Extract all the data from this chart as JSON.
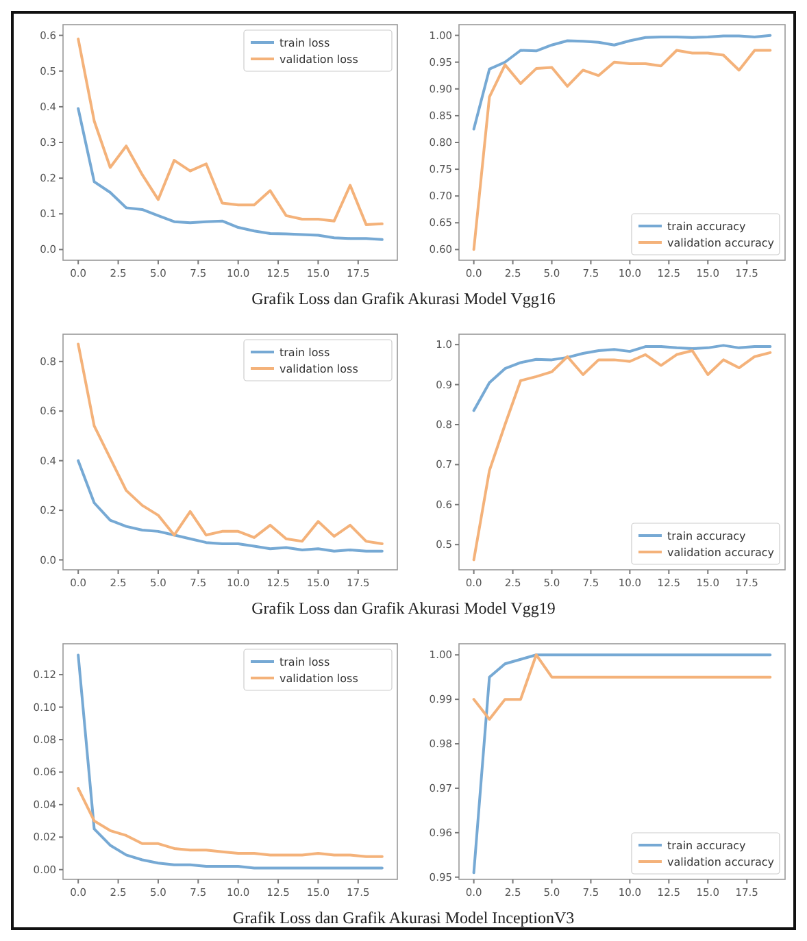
{
  "chart_data": [
    {
      "type": "line",
      "x": [
        0,
        1,
        2,
        3,
        4,
        5,
        6,
        7,
        8,
        9,
        10,
        11,
        12,
        13,
        14,
        15,
        16,
        17,
        18,
        19
      ],
      "xlim": [
        -0.95,
        19.95
      ],
      "xticks": [
        {
          "value": 0,
          "label": "0.0"
        },
        {
          "value": 2.5,
          "label": "2.5"
        },
        {
          "value": 5,
          "label": "5.0"
        },
        {
          "value": 7.5,
          "label": "7.5"
        },
        {
          "value": 10,
          "label": "10.0"
        },
        {
          "value": 12.5,
          "label": "12.5"
        },
        {
          "value": 15,
          "label": "15.0"
        },
        {
          "value": 17.5,
          "label": "17.5"
        }
      ],
      "ylim": [
        -0.03,
        0.63
      ],
      "yticks": [
        {
          "value": 0,
          "label": "0.0"
        },
        0.1,
        0.2,
        0.3,
        0.4,
        0.5,
        0.6
      ],
      "legend": "top right",
      "annotations": [
        "Grafik Loss dan Grafik Akurasi Model Vgg16"
      ],
      "series": [
        {
          "name": "train loss",
          "color": "#76a9d4",
          "values": [
            0.395,
            0.19,
            0.16,
            0.117,
            0.112,
            0.095,
            0.078,
            0.075,
            0.078,
            0.08,
            0.062,
            0.052,
            0.045,
            0.044,
            0.042,
            0.04,
            0.033,
            0.031,
            0.031,
            0.028
          ]
        },
        {
          "name": "validation loss",
          "color": "#f4b27a",
          "values": [
            0.59,
            0.36,
            0.23,
            0.29,
            0.21,
            0.14,
            0.25,
            0.22,
            0.24,
            0.13,
            0.125,
            0.125,
            0.165,
            0.095,
            0.085,
            0.085,
            0.08,
            0.18,
            0.07,
            0.072
          ]
        }
      ]
    },
    {
      "type": "line",
      "x": [
        0,
        1,
        2,
        3,
        4,
        5,
        6,
        7,
        8,
        9,
        10,
        11,
        12,
        13,
        14,
        15,
        16,
        17,
        18,
        19
      ],
      "xlim": [
        -0.95,
        19.95
      ],
      "xticks": [
        {
          "value": 0,
          "label": "0.0"
        },
        {
          "value": 2.5,
          "label": "2.5"
        },
        {
          "value": 5,
          "label": "5.0"
        },
        {
          "value": 7.5,
          "label": "7.5"
        },
        {
          "value": 10,
          "label": "10.0"
        },
        {
          "value": 12.5,
          "label": "12.5"
        },
        {
          "value": 15,
          "label": "15.0"
        },
        {
          "value": 17.5,
          "label": "17.5"
        }
      ],
      "ylim": [
        0.58,
        1.02
      ],
      "yticks": [
        {
          "value": 0.6,
          "label": "0.60"
        },
        0.65,
        {
          "value": 0.7,
          "label": "0.70"
        },
        0.75,
        {
          "value": 0.8,
          "label": "0.80"
        },
        0.85,
        {
          "value": 0.9,
          "label": "0.90"
        },
        0.95,
        {
          "value": 1,
          "label": "1.00"
        }
      ],
      "legend": "bottom right",
      "series": [
        {
          "name": "train accuracy",
          "color": "#76a9d4",
          "values": [
            0.825,
            0.937,
            0.95,
            0.972,
            0.971,
            0.982,
            0.99,
            0.989,
            0.987,
            0.982,
            0.99,
            0.996,
            0.997,
            0.997,
            0.996,
            0.997,
            0.999,
            0.999,
            0.997,
            1.0
          ]
        },
        {
          "name": "validation accuracy",
          "color": "#f4b27a",
          "values": [
            0.6,
            0.885,
            0.945,
            0.91,
            0.938,
            0.94,
            0.905,
            0.935,
            0.925,
            0.95,
            0.947,
            0.947,
            0.943,
            0.972,
            0.967,
            0.967,
            0.963,
            0.935,
            0.972,
            0.972
          ]
        }
      ]
    },
    {
      "type": "line",
      "x": [
        0,
        1,
        2,
        3,
        4,
        5,
        6,
        7,
        8,
        9,
        10,
        11,
        12,
        13,
        14,
        15,
        16,
        17,
        18,
        19
      ],
      "xlim": [
        -0.95,
        19.95
      ],
      "xticks": [
        {
          "value": 0,
          "label": "0.0"
        },
        {
          "value": 2.5,
          "label": "2.5"
        },
        {
          "value": 5,
          "label": "5.0"
        },
        {
          "value": 7.5,
          "label": "7.5"
        },
        {
          "value": 10,
          "label": "10.0"
        },
        {
          "value": 12.5,
          "label": "12.5"
        },
        {
          "value": 15,
          "label": "15.0"
        },
        {
          "value": 17.5,
          "label": "17.5"
        }
      ],
      "ylim": [
        -0.04,
        0.91
      ],
      "yticks": [
        {
          "value": 0,
          "label": "0.0"
        },
        0.2,
        0.4,
        0.6,
        0.8
      ],
      "legend": "top right",
      "annotations": [
        "Grafik Loss dan Grafik Akurasi Model Vgg19"
      ],
      "series": [
        {
          "name": "train loss",
          "color": "#76a9d4",
          "values": [
            0.4,
            0.23,
            0.16,
            0.135,
            0.12,
            0.115,
            0.1,
            0.085,
            0.07,
            0.065,
            0.065,
            0.055,
            0.045,
            0.05,
            0.04,
            0.045,
            0.035,
            0.04,
            0.035,
            0.035
          ]
        },
        {
          "name": "validation loss",
          "color": "#f4b27a",
          "values": [
            0.87,
            0.54,
            0.41,
            0.28,
            0.22,
            0.18,
            0.1,
            0.195,
            0.1,
            0.115,
            0.115,
            0.09,
            0.14,
            0.085,
            0.075,
            0.155,
            0.095,
            0.14,
            0.075,
            0.065
          ]
        }
      ]
    },
    {
      "type": "line",
      "x": [
        0,
        1,
        2,
        3,
        4,
        5,
        6,
        7,
        8,
        9,
        10,
        11,
        12,
        13,
        14,
        15,
        16,
        17,
        18,
        19
      ],
      "xlim": [
        -0.95,
        19.95
      ],
      "xticks": [
        {
          "value": 0,
          "label": "0.0"
        },
        {
          "value": 2.5,
          "label": "2.5"
        },
        {
          "value": 5,
          "label": "5.0"
        },
        {
          "value": 7.5,
          "label": "7.5"
        },
        {
          "value": 10,
          "label": "10.0"
        },
        {
          "value": 12.5,
          "label": "12.5"
        },
        {
          "value": 15,
          "label": "15.0"
        },
        {
          "value": 17.5,
          "label": "17.5"
        }
      ],
      "ylim": [
        0.437,
        1.026
      ],
      "yticks": [
        0.5,
        0.6,
        0.7,
        0.8,
        0.9,
        {
          "value": 1,
          "label": "1.0"
        }
      ],
      "legend": "bottom right",
      "series": [
        {
          "name": "train accuracy",
          "color": "#76a9d4",
          "values": [
            0.835,
            0.905,
            0.94,
            0.955,
            0.963,
            0.962,
            0.968,
            0.978,
            0.985,
            0.988,
            0.983,
            0.995,
            0.995,
            0.992,
            0.99,
            0.992,
            0.998,
            0.992,
            0.995,
            0.995
          ]
        },
        {
          "name": "validation accuracy",
          "color": "#f4b27a",
          "values": [
            0.462,
            0.685,
            0.8,
            0.91,
            0.92,
            0.932,
            0.97,
            0.925,
            0.962,
            0.962,
            0.958,
            0.975,
            0.948,
            0.975,
            0.985,
            0.925,
            0.962,
            0.942,
            0.97,
            0.98
          ]
        }
      ]
    },
    {
      "type": "line",
      "x": [
        0,
        1,
        2,
        3,
        4,
        5,
        6,
        7,
        8,
        9,
        10,
        11,
        12,
        13,
        14,
        15,
        16,
        17,
        18,
        19
      ],
      "xlim": [
        -0.95,
        19.95
      ],
      "xticks": [
        {
          "value": 0,
          "label": "0.0"
        },
        {
          "value": 2.5,
          "label": "2.5"
        },
        {
          "value": 5,
          "label": "5.0"
        },
        {
          "value": 7.5,
          "label": "7.5"
        },
        {
          "value": 10,
          "label": "10.0"
        },
        {
          "value": 12.5,
          "label": "12.5"
        },
        {
          "value": 15,
          "label": "15.0"
        },
        {
          "value": 17.5,
          "label": "17.5"
        }
      ],
      "ylim": [
        -0.006,
        0.139
      ],
      "yticks": [
        {
          "value": 0,
          "label": "0.00"
        },
        0.02,
        0.04,
        0.06,
        0.08,
        {
          "value": 0.1,
          "label": "0.10"
        },
        0.12
      ],
      "legend": "top right",
      "annotations": [
        "Grafik Loss dan Grafik Akurasi Model InceptionV3"
      ],
      "series": [
        {
          "name": "train loss",
          "color": "#76a9d4",
          "values": [
            0.132,
            0.025,
            0.015,
            0.009,
            0.006,
            0.004,
            0.003,
            0.003,
            0.002,
            0.002,
            0.002,
            0.001,
            0.001,
            0.001,
            0.001,
            0.001,
            0.001,
            0.001,
            0.001,
            0.001
          ]
        },
        {
          "name": "validation loss",
          "color": "#f4b27a",
          "values": [
            0.05,
            0.03,
            0.024,
            0.021,
            0.016,
            0.016,
            0.013,
            0.012,
            0.012,
            0.011,
            0.01,
            0.01,
            0.009,
            0.009,
            0.009,
            0.01,
            0.009,
            0.009,
            0.008,
            0.008
          ]
        }
      ]
    },
    {
      "type": "line",
      "x": [
        0,
        1,
        2,
        3,
        4,
        5,
        6,
        7,
        8,
        9,
        10,
        11,
        12,
        13,
        14,
        15,
        16,
        17,
        18,
        19
      ],
      "xlim": [
        -0.95,
        19.95
      ],
      "xticks": [
        {
          "value": 0,
          "label": "0.0"
        },
        {
          "value": 2.5,
          "label": "2.5"
        },
        {
          "value": 5,
          "label": "5.0"
        },
        {
          "value": 7.5,
          "label": "7.5"
        },
        {
          "value": 10,
          "label": "10.0"
        },
        {
          "value": 12.5,
          "label": "12.5"
        },
        {
          "value": 15,
          "label": "15.0"
        },
        {
          "value": 17.5,
          "label": "17.5"
        }
      ],
      "ylim": [
        0.9495,
        1.0025
      ],
      "yticks": [
        0.95,
        0.96,
        0.97,
        0.98,
        0.99,
        {
          "value": 1,
          "label": "1.00"
        }
      ],
      "legend": "bottom right",
      "series": [
        {
          "name": "train accuracy",
          "color": "#76a9d4",
          "values": [
            0.951,
            0.995,
            0.998,
            0.999,
            1.0,
            1.0,
            1.0,
            1.0,
            1.0,
            1.0,
            1.0,
            1.0,
            1.0,
            1.0,
            1.0,
            1.0,
            1.0,
            1.0,
            1.0,
            1.0
          ]
        },
        {
          "name": "validation accuracy",
          "color": "#f4b27a",
          "values": [
            0.99,
            0.9855,
            0.99,
            0.99,
            1.0,
            0.995,
            0.995,
            0.995,
            0.995,
            0.995,
            0.995,
            0.995,
            0.995,
            0.995,
            0.995,
            0.995,
            0.995,
            0.995,
            0.995,
            0.995
          ]
        }
      ]
    }
  ]
}
